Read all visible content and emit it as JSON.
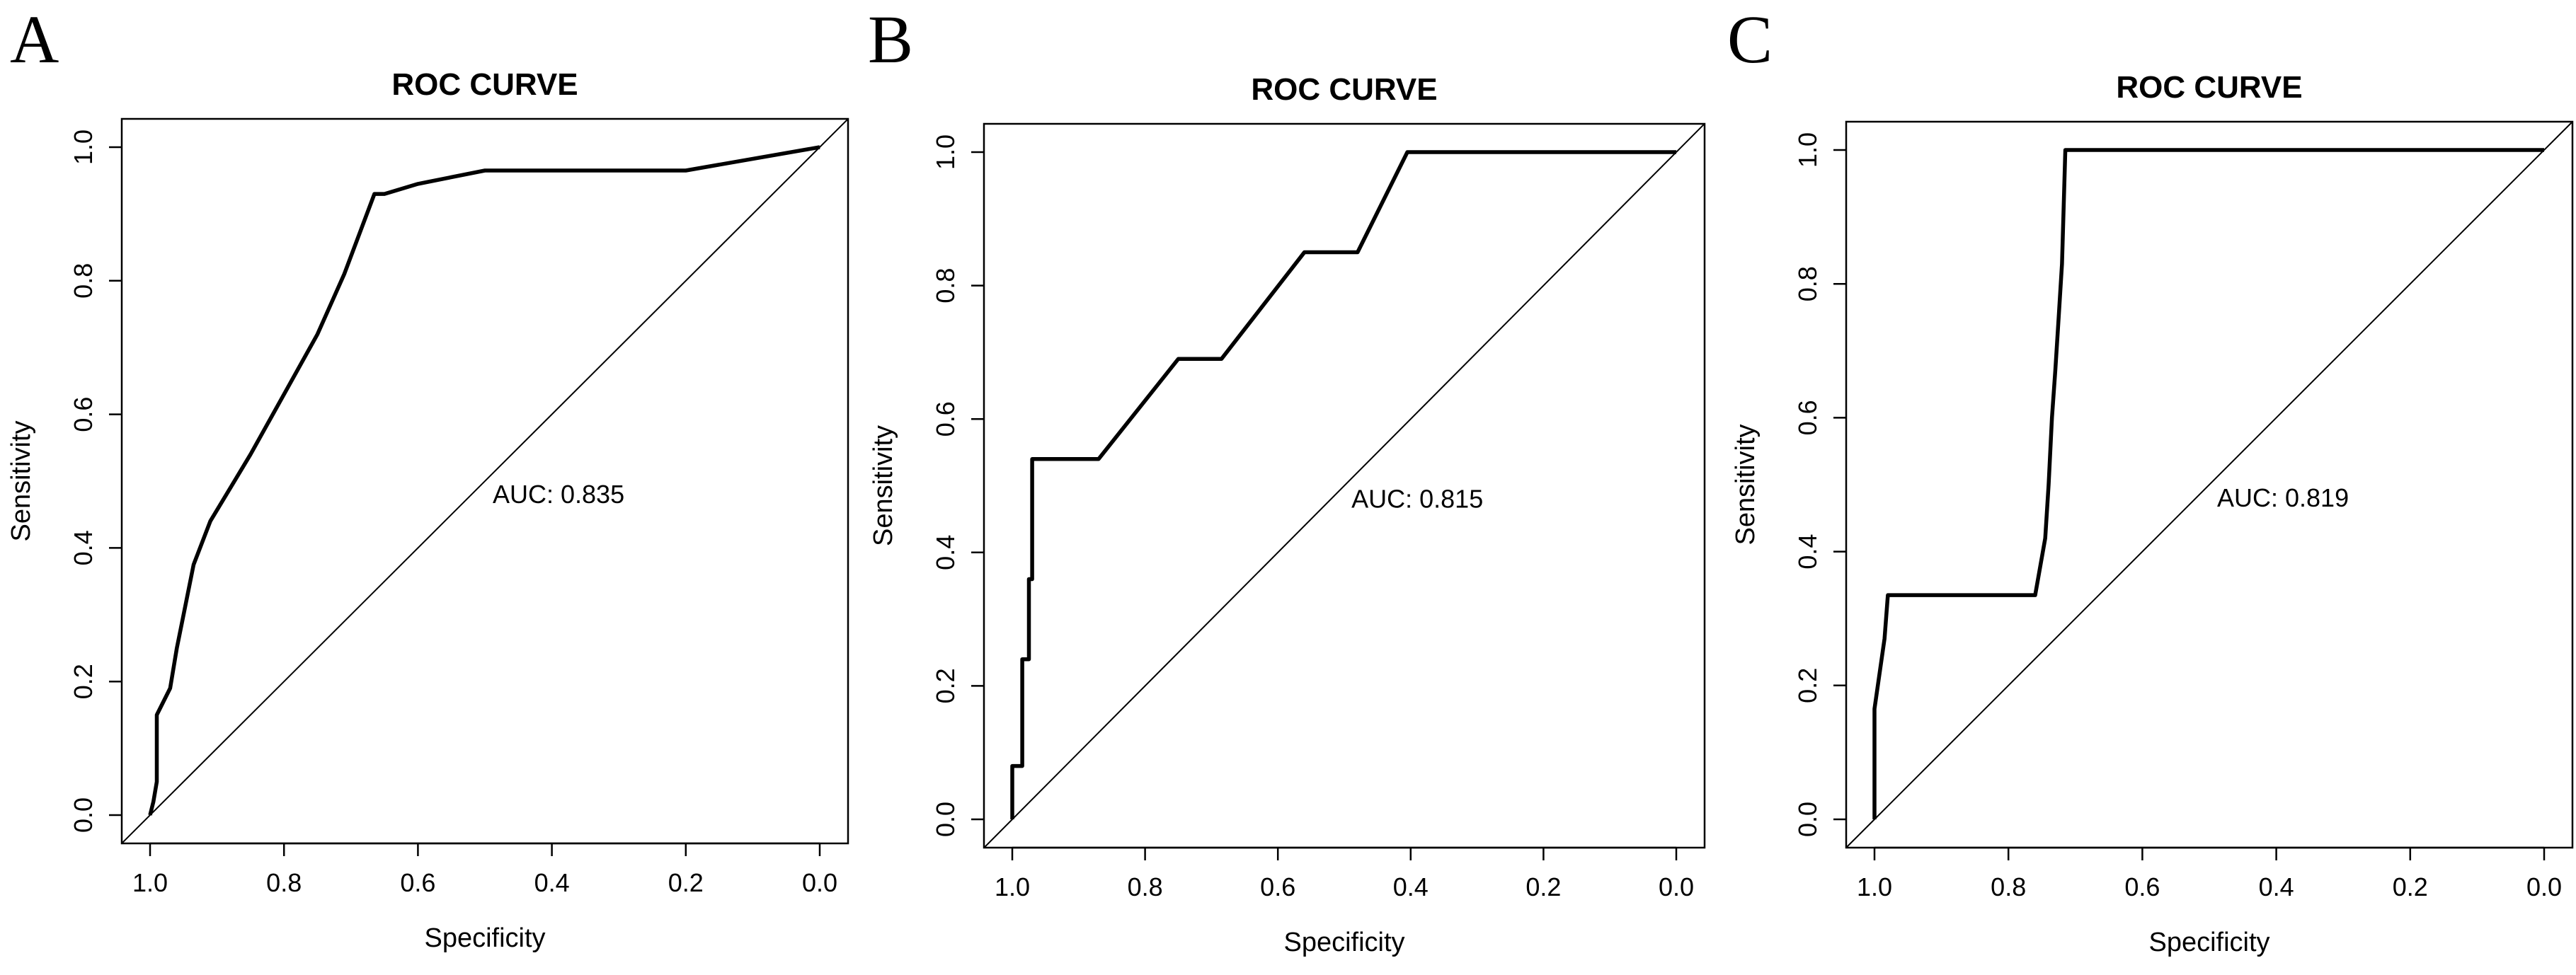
{
  "chart_data": [
    {
      "panel": "A",
      "type": "line",
      "title": "ROC CURVE",
      "xlabel": "Specificity",
      "ylabel": "Sensitivity",
      "xlim": [
        1.0,
        0.0
      ],
      "ylim": [
        0.0,
        1.0
      ],
      "xticks": [
        "1.0",
        "0.8",
        "0.6",
        "0.4",
        "0.2",
        "0.0"
      ],
      "yticks": [
        "0.0",
        "0.2",
        "0.4",
        "0.6",
        "0.8",
        "1.0"
      ],
      "xtick_values": [
        1.0,
        0.8,
        0.6,
        0.4,
        0.2,
        0.0
      ],
      "ytick_values": [
        0.0,
        0.2,
        0.4,
        0.6,
        0.8,
        1.0
      ],
      "annotation": "AUC: 0.835",
      "annotation_pos": {
        "specificity": 0.39,
        "sensitivity": 0.48
      },
      "reference_line": true,
      "series": [
        {
          "name": "ROC",
          "specificity": [
            1.0,
            0.995,
            0.99,
            0.99,
            0.97,
            0.96,
            0.95,
            0.935,
            0.91,
            0.88,
            0.85,
            0.8,
            0.75,
            0.71,
            0.665,
            0.65,
            0.6,
            0.5,
            0.25,
            0.2,
            0.0
          ],
          "sensitivity": [
            0.0,
            0.02,
            0.05,
            0.15,
            0.19,
            0.25,
            0.3,
            0.375,
            0.44,
            0.49,
            0.54,
            0.63,
            0.72,
            0.81,
            0.93,
            0.93,
            0.945,
            0.965,
            0.965,
            0.965,
            1.0
          ]
        }
      ]
    },
    {
      "panel": "B",
      "type": "line",
      "title": "ROC CURVE",
      "xlabel": "Specificity",
      "ylabel": "Sensitivity",
      "xlim": [
        1.0,
        0.0
      ],
      "ylim": [
        0.0,
        1.0
      ],
      "xticks": [
        "1.0",
        "0.8",
        "0.6",
        "0.4",
        "0.2",
        "0.0"
      ],
      "yticks": [
        "0.0",
        "0.2",
        "0.4",
        "0.6",
        "0.8",
        "1.0"
      ],
      "xtick_values": [
        1.0,
        0.8,
        0.6,
        0.4,
        0.2,
        0.0
      ],
      "ytick_values": [
        0.0,
        0.2,
        0.4,
        0.6,
        0.8,
        1.0
      ],
      "annotation": "AUC: 0.815",
      "annotation_pos": {
        "specificity": 0.39,
        "sensitivity": 0.48
      },
      "reference_line": true,
      "series": [
        {
          "name": "ROC",
          "specificity": [
            1.0,
            1.0,
            0.985,
            0.985,
            0.975,
            0.975,
            0.97,
            0.97,
            0.87,
            0.75,
            0.685,
            0.56,
            0.48,
            0.405,
            0.405,
            0.0
          ],
          "sensitivity": [
            0.0,
            0.08,
            0.08,
            0.24,
            0.24,
            0.36,
            0.36,
            0.54,
            0.54,
            0.69,
            0.69,
            0.85,
            0.85,
            1.0,
            1.0,
            1.0
          ]
        }
      ]
    },
    {
      "panel": "C",
      "type": "line",
      "title": "ROC CURVE",
      "xlabel": "Specificity",
      "ylabel": "Sensitivity",
      "xlim": [
        1.0,
        0.0
      ],
      "ylim": [
        0.0,
        1.0
      ],
      "xticks": [
        "1.0",
        "0.8",
        "0.6",
        "0.4",
        "0.2",
        "0.0"
      ],
      "yticks": [
        "0.0",
        "0.2",
        "0.4",
        "0.6",
        "0.8",
        "1.0"
      ],
      "xtick_values": [
        1.0,
        0.8,
        0.6,
        0.4,
        0.2,
        0.0
      ],
      "ytick_values": [
        0.0,
        0.2,
        0.4,
        0.6,
        0.8,
        1.0
      ],
      "annotation": "AUC: 0.819",
      "annotation_pos": {
        "specificity": 0.39,
        "sensitivity": 0.48
      },
      "reference_line": true,
      "series": [
        {
          "name": "ROC",
          "specificity": [
            1.0,
            1.0,
            0.985,
            0.98,
            0.76,
            0.745,
            0.74,
            0.735,
            0.73,
            0.725,
            0.72,
            0.715,
            0.0
          ],
          "sensitivity": [
            0.0,
            0.165,
            0.27,
            0.335,
            0.335,
            0.42,
            0.5,
            0.6,
            0.67,
            0.75,
            0.83,
            1.0,
            1.0
          ]
        }
      ]
    }
  ]
}
